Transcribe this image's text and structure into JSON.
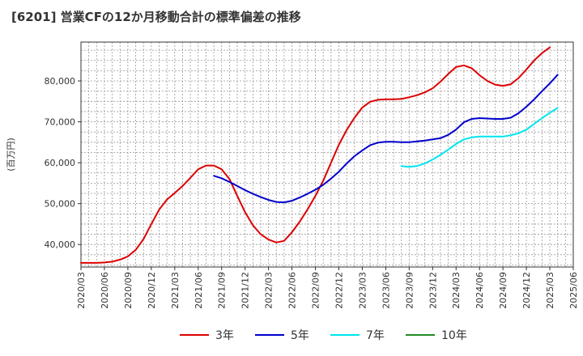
{
  "chart_data": {
    "type": "line",
    "title": "[6201]  営業CFの12か月移動合計の標準偏差の推移",
    "ylabel": "(百万円)",
    "xlabel": "",
    "ylim": [
      34500,
      89500
    ],
    "yticks": [
      40000,
      50000,
      60000,
      70000,
      80000
    ],
    "ytick_labels": [
      "40,000",
      "50,000",
      "60,000",
      "70,000",
      "80,000"
    ],
    "x_range": [
      "2020-03",
      "2025-06"
    ],
    "xtick_labels": [
      "2020/03",
      "2020/06",
      "2020/09",
      "2020/12",
      "2021/03",
      "2021/06",
      "2021/09",
      "2021/12",
      "2022/03",
      "2022/06",
      "2022/09",
      "2022/12",
      "2023/03",
      "2023/06",
      "2023/09",
      "2023/12",
      "2024/03",
      "2024/06",
      "2024/09",
      "2024/12",
      "2025/03",
      "2025/06"
    ],
    "grid": true,
    "legend_position": "bottom",
    "series": [
      {
        "name": "3年",
        "color": "#dd0000",
        "start": "2020-03",
        "values": [
          35500,
          35500,
          35500,
          35600,
          35800,
          36300,
          37100,
          38700,
          41300,
          45000,
          48500,
          51000,
          52600,
          54300,
          56300,
          58400,
          59300,
          59300,
          58400,
          56000,
          51900,
          47900,
          44700,
          42500,
          41200,
          40500,
          40900,
          43000,
          45600,
          48600,
          51900,
          55600,
          60000,
          64400,
          68000,
          71000,
          73500,
          74900,
          75400,
          75500,
          75500,
          75600,
          76000,
          76500,
          77200,
          78200,
          79800,
          81700,
          83400,
          83800,
          83100,
          81400,
          80000,
          79100,
          78800,
          79200,
          80700,
          82800,
          85000,
          86800,
          88200
        ]
      },
      {
        "name": "5年",
        "color": "#0000cc",
        "start": "2021-08",
        "values": [
          56800,
          56200,
          55300,
          54300,
          53300,
          52400,
          51600,
          50900,
          50400,
          50300,
          50700,
          51500,
          52400,
          53400,
          54600,
          56100,
          57800,
          59800,
          61600,
          63000,
          64300,
          64900,
          65100,
          65100,
          65000,
          65000,
          65200,
          65400,
          65700,
          66000,
          66800,
          68100,
          69900,
          70700,
          70900,
          70800,
          70700,
          70700,
          71000,
          72100,
          73700,
          75500,
          77500,
          79400,
          81500
        ]
      },
      {
        "name": "7年",
        "color": "#00e5ee",
        "start": "2023-08",
        "values": [
          59200,
          59000,
          59200,
          59800,
          60800,
          61900,
          63200,
          64600,
          65700,
          66200,
          66400,
          66400,
          66400,
          66400,
          66700,
          67200,
          68100,
          69500,
          70900,
          72200,
          73400
        ]
      },
      {
        "name": "10年",
        "color": "#228b22",
        "start": "2025-03",
        "values": []
      }
    ]
  }
}
